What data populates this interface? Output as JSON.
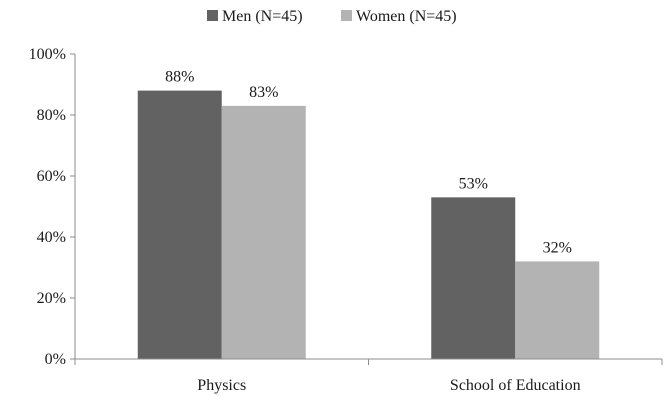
{
  "chart_data": {
    "type": "bar",
    "categories": [
      "Physics",
      "School of Education"
    ],
    "series": [
      {
        "name": "Men (N=45)",
        "values": [
          88,
          53
        ],
        "color": "#626262"
      },
      {
        "name": "Women (N=45)",
        "values": [
          83,
          32
        ],
        "color": "#b3b3b3"
      }
    ],
    "data_labels": [
      [
        "88%",
        "53%"
      ],
      [
        "83%",
        "32%"
      ]
    ],
    "ylim": [
      0,
      100
    ],
    "yticks": [
      0,
      20,
      40,
      60,
      80,
      100
    ],
    "ytick_labels": [
      "0%",
      "20%",
      "40%",
      "60%",
      "80%",
      "100%"
    ],
    "title": "",
    "xlabel": "",
    "ylabel": "",
    "legend_position": "top-center",
    "grid": false
  }
}
